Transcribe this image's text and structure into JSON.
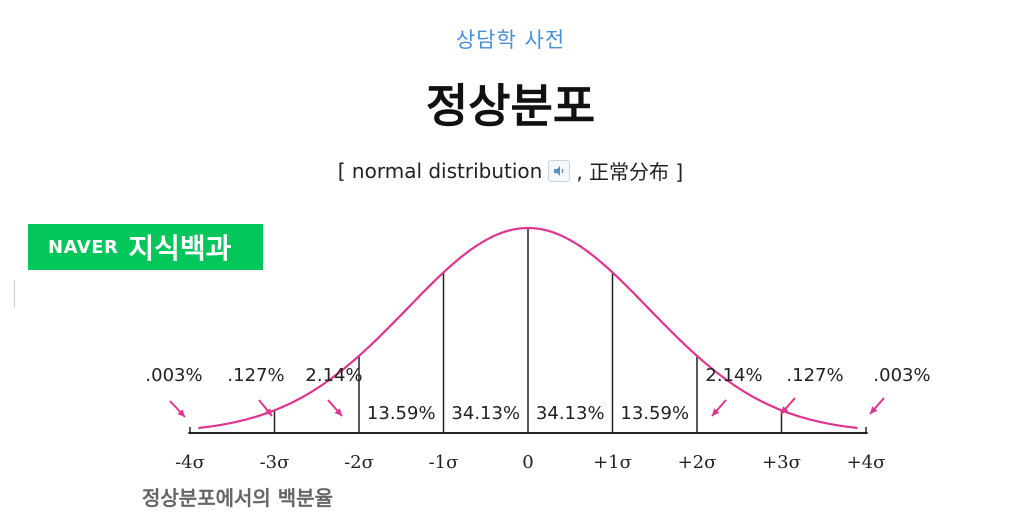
{
  "header": {
    "category": "상담학 사전",
    "title": "정상분포",
    "subtitle_open": "[ normal distribution",
    "subtitle_close": ", 正常分布 ]",
    "speaker_icon": "speaker-icon"
  },
  "badge": {
    "brand": "NAVER",
    "service": "지식백과",
    "color": "#03c75a"
  },
  "chart_data": {
    "type": "area",
    "curve_color": "#e0358f",
    "axis_ticks": [
      "-4σ",
      "-3σ",
      "-2σ",
      "-1σ",
      "0",
      "+1σ",
      "+2σ",
      "+3σ",
      "+4σ"
    ],
    "tick_values": [
      -4,
      -3,
      -2,
      -1,
      0,
      1,
      2,
      3,
      4
    ],
    "band_labels": [
      {
        "label": "13.59%",
        "from": -2,
        "to": -1
      },
      {
        "label": "34.13%",
        "from": -1,
        "to": 0
      },
      {
        "label": "34.13%",
        "from": 0,
        "to": 1
      },
      {
        "label": "13.59%",
        "from": 1,
        "to": 2
      }
    ],
    "tail_labels": [
      {
        "label": ".003%",
        "at": -4
      },
      {
        "label": ".127%",
        "at": -3
      },
      {
        "label": "2.14%",
        "at": -2
      },
      {
        "label": "2.14%",
        "at": 2
      },
      {
        "label": ".127%",
        "at": 3
      },
      {
        "label": ".003%",
        "at": 4
      }
    ],
    "caption": "정상분포에서의 백분율"
  }
}
